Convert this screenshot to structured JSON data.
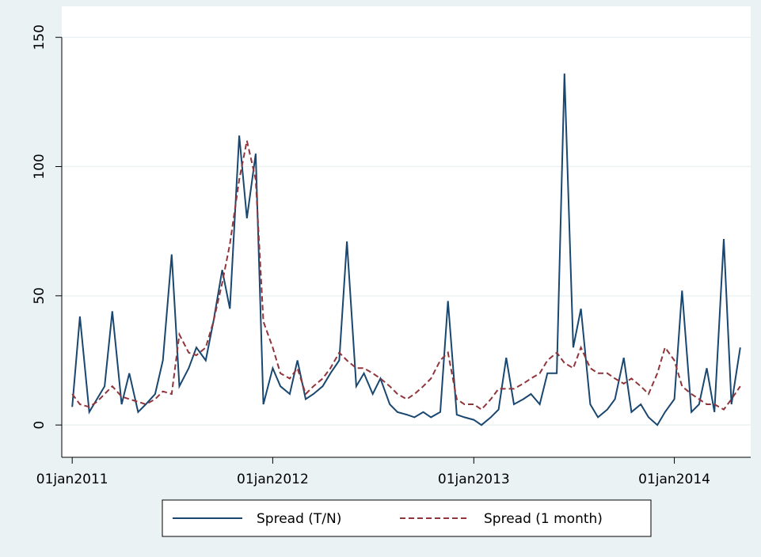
{
  "chart_data": {
    "type": "line",
    "x": [
      "2011-01-01",
      "2011-01-15",
      "2011-02-01",
      "2011-02-15",
      "2011-03-01",
      "2011-03-15",
      "2011-04-01",
      "2011-04-15",
      "2011-05-01",
      "2011-05-15",
      "2011-06-01",
      "2011-06-15",
      "2011-07-01",
      "2011-07-15",
      "2011-08-01",
      "2011-08-15",
      "2011-09-01",
      "2011-09-15",
      "2011-10-01",
      "2011-10-15",
      "2011-11-01",
      "2011-11-15",
      "2011-12-01",
      "2011-12-15",
      "2012-01-01",
      "2012-01-15",
      "2012-02-01",
      "2012-02-15",
      "2012-03-01",
      "2012-03-15",
      "2012-04-01",
      "2012-04-15",
      "2012-05-01",
      "2012-05-15",
      "2012-06-01",
      "2012-06-15",
      "2012-07-01",
      "2012-07-15",
      "2012-08-01",
      "2012-08-15",
      "2012-09-01",
      "2012-09-15",
      "2012-10-01",
      "2012-10-15",
      "2012-11-01",
      "2012-11-15",
      "2012-12-01",
      "2012-12-15",
      "2013-01-01",
      "2013-01-15",
      "2013-02-01",
      "2013-02-15",
      "2013-03-01",
      "2013-03-15",
      "2013-04-01",
      "2013-04-15",
      "2013-05-01",
      "2013-05-15",
      "2013-06-01",
      "2013-06-15",
      "2013-07-01",
      "2013-07-15",
      "2013-08-01",
      "2013-08-15",
      "2013-09-01",
      "2013-09-15",
      "2013-10-01",
      "2013-10-15",
      "2013-11-01",
      "2013-11-15",
      "2013-12-01",
      "2013-12-15",
      "2014-01-01",
      "2014-01-15",
      "2014-02-01",
      "2014-02-15",
      "2014-03-01",
      "2014-03-15",
      "2014-04-01",
      "2014-04-15",
      "2014-05-01"
    ],
    "series": [
      {
        "name": "Spread (T/N)",
        "color": "#1a476f",
        "dash": false,
        "values": [
          7,
          42,
          5,
          10,
          15,
          44,
          8,
          20,
          5,
          8,
          12,
          25,
          66,
          15,
          22,
          30,
          25,
          40,
          60,
          45,
          112,
          80,
          105,
          8,
          22,
          15,
          12,
          25,
          10,
          12,
          15,
          20,
          25,
          71,
          15,
          20,
          12,
          18,
          8,
          5,
          4,
          3,
          5,
          3,
          5,
          48,
          4,
          3,
          2,
          0,
          3,
          6,
          26,
          8,
          10,
          12,
          8,
          20,
          20,
          136,
          30,
          45,
          8,
          3,
          6,
          10,
          26,
          5,
          8,
          3,
          0,
          5,
          10,
          52,
          5,
          8,
          22,
          5,
          72,
          8,
          30
        ]
      },
      {
        "name": "Spread (1 month)",
        "color": "#90353b",
        "dash": true,
        "values": [
          12,
          8,
          7,
          9,
          12,
          15,
          11,
          10,
          9,
          8,
          10,
          13,
          12,
          35,
          28,
          27,
          30,
          40,
          55,
          70,
          95,
          110,
          95,
          40,
          30,
          20,
          18,
          22,
          12,
          15,
          18,
          22,
          28,
          25,
          22,
          22,
          20,
          18,
          15,
          12,
          10,
          12,
          15,
          18,
          25,
          28,
          10,
          8,
          8,
          6,
          10,
          14,
          14,
          14,
          16,
          18,
          20,
          25,
          28,
          24,
          22,
          30,
          22,
          20,
          20,
          18,
          16,
          18,
          15,
          12,
          20,
          30,
          25,
          15,
          12,
          10,
          8,
          8,
          6,
          10,
          15
        ]
      }
    ],
    "xlim": [
      "2010-12-13",
      "2014-05-20"
    ],
    "xticks": [
      {
        "value": "2011-01-01",
        "label": "01jan2011"
      },
      {
        "value": "2012-01-01",
        "label": "01jan2012"
      },
      {
        "value": "2013-01-01",
        "label": "01jan2013"
      },
      {
        "value": "2014-01-01",
        "label": "01jan2014"
      }
    ],
    "ylim": [
      -12.5,
      162
    ],
    "yticks": [
      0,
      50,
      100,
      150
    ],
    "grid": true
  }
}
